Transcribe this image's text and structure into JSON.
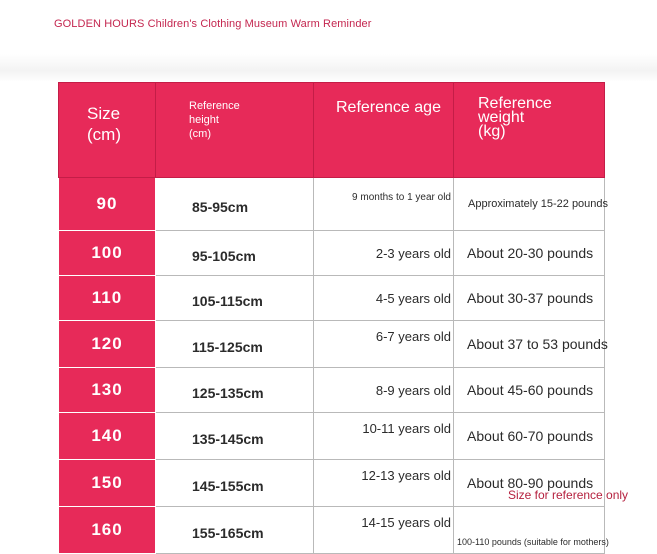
{
  "header_note": "GOLDEN HOURS Children's Clothing Museum Warm Reminder",
  "table": {
    "headers": {
      "size_line1": "Size",
      "size_line2": "(cm)",
      "height_line1": "Reference",
      "height_line2": "height",
      "height_line3": "(cm)",
      "age": "Reference age",
      "weight_line1": "Reference",
      "weight_line2": "weight",
      "weight_line3": "(kg)"
    },
    "rows": [
      {
        "size": "90",
        "height": "85-95cm",
        "age": "9 months to 1 year old",
        "weight": "Approximately 15-22 pounds"
      },
      {
        "size": "100",
        "height": "95-105cm",
        "age": "2-3 years old",
        "weight": "About 20-30 pounds"
      },
      {
        "size": "110",
        "height": "105-115cm",
        "age": "4-5 years old",
        "weight": "About 30-37 pounds"
      },
      {
        "size": "120",
        "height": "115-125cm",
        "age": "6-7 years old",
        "weight": "About 37 to 53 pounds"
      },
      {
        "size": "130",
        "height": "125-135cm",
        "age": "8-9 years old",
        "weight": "About 45-60 pounds"
      },
      {
        "size": "140",
        "height": "135-145cm",
        "age": "10-11 years old",
        "weight": "About 60-70 pounds"
      },
      {
        "size": "150",
        "height": "145-155cm",
        "age": "12-13 years old",
        "weight": "About 80-90 pounds"
      },
      {
        "size": "160",
        "height": "155-165cm",
        "age": "14-15 years old",
        "weight": "100-110 pounds (suitable for mothers)"
      }
    ]
  },
  "footer_note": "Size for reference only",
  "colors": {
    "header_bg": "#e72a59",
    "accent_text": "#c4264f",
    "grid": "#b9b9b9"
  }
}
